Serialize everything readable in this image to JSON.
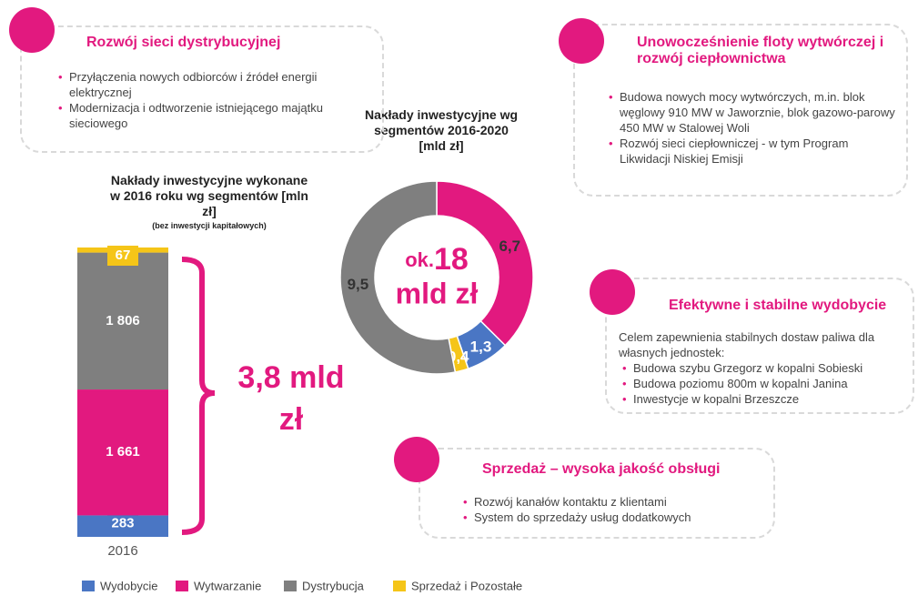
{
  "chart_data": [
    {
      "type": "stacked-bar",
      "title": "Nakłady inwestycyjne wykonane w 2016 roku wg segmentów [mln zł]",
      "subtitle": "(bez inwestycji kapitałowych)",
      "categories": [
        "2016"
      ],
      "series": [
        {
          "name": "Wydobycie",
          "color": "#4a76c4",
          "values": [
            283
          ],
          "value_labels": [
            "283"
          ]
        },
        {
          "name": "Wytwarzanie",
          "color": "#e2197f",
          "values": [
            1661
          ],
          "value_labels": [
            "1 661"
          ]
        },
        {
          "name": "Dystrybucja",
          "color": "#7f7f7f",
          "values": [
            1806
          ],
          "value_labels": [
            "1 806"
          ]
        },
        {
          "name": "Sprzedaż i Pozostałe",
          "color": "#f5c518",
          "values": [
            67
          ],
          "value_labels": [
            "67"
          ]
        }
      ],
      "annotation": "3,8 mld zł"
    },
    {
      "type": "donut",
      "title": "Nakłady inwestycyjne wg segmentów 2016-2020 [mld zł]",
      "values": [
        6.7,
        1.3,
        0.4,
        9.5
      ],
      "value_labels": [
        "6,7",
        "1,3",
        "0,4",
        "9,5"
      ],
      "colors": [
        "#e2197f",
        "#4a76c4",
        "#f5c518",
        "#7f7f7f"
      ],
      "center": {
        "prefix": "ok.",
        "value": "18",
        "unit": "mld zł"
      }
    }
  ],
  "panels": [
    {
      "title": "Rozwój sieci dystrybucyjnej",
      "items": [
        "Przyłączenia nowych odbiorców i źródeł energii elektrycznej",
        "Modernizacja i odtworzenie istniejącego majątku sieciowego"
      ]
    },
    {
      "title": "Unowocześnienie floty wytwórczej i rozwój ciepłownictwa",
      "items": [
        "Budowa nowych mocy wytwórczych, m.in. blok węglowy 910 MW w Jaworznie, blok gazowo-parowy 450 MW w Stalowej Woli",
        "Rozwój sieci ciepłowniczej  - w tym Program Likwidacji Niskiej Emisji"
      ]
    },
    {
      "title": "Efektywne i stabilne wydobycie",
      "intro": "Celem zapewnienia stabilnych dostaw paliwa dla własnych jednostek:",
      "items": [
        "Budowa szybu Grzegorz w kopalni Sobieski",
        "Budowa poziomu 800m w kopalni Janina",
        "Inwestycje w kopalni Brzeszcze"
      ]
    },
    {
      "title": "Sprzedaż – wysoka jakość obsługi",
      "items": [
        "Rozwój kanałów kontaktu z klientami",
        "System do sprzedaży usług dodatkowych"
      ]
    }
  ]
}
